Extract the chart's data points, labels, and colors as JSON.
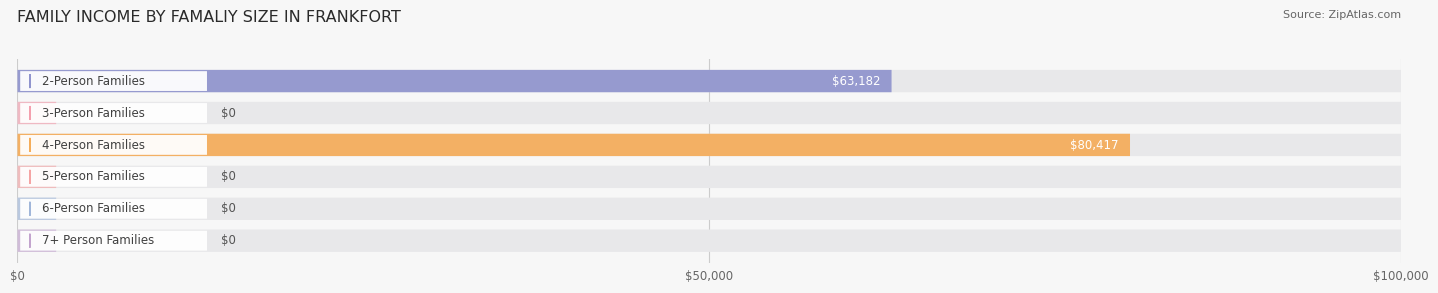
{
  "title": "FAMILY INCOME BY FAMALIY SIZE IN FRANKFORT",
  "source": "Source: ZipAtlas.com",
  "categories": [
    "2-Person Families",
    "3-Person Families",
    "4-Person Families",
    "5-Person Families",
    "6-Person Families",
    "7+ Person Families"
  ],
  "values": [
    63182,
    0,
    80417,
    0,
    0,
    0
  ],
  "bar_colors": [
    "#8b8fcc",
    "#f49baa",
    "#f5a952",
    "#f5a0a0",
    "#9bb3d8",
    "#c09fcc"
  ],
  "value_labels": [
    "$63,182",
    "$0",
    "$80,417",
    "$0",
    "$0",
    "$0"
  ],
  "xlim": [
    0,
    100000
  ],
  "xticks": [
    0,
    50000,
    100000
  ],
  "xticklabels": [
    "$0",
    "$50,000",
    "$100,000"
  ],
  "bg_color": "#f7f7f7",
  "track_color": "#e8e8ea",
  "title_fontsize": 11.5,
  "source_fontsize": 8,
  "label_fontsize": 8.5,
  "value_fontsize": 8.5
}
